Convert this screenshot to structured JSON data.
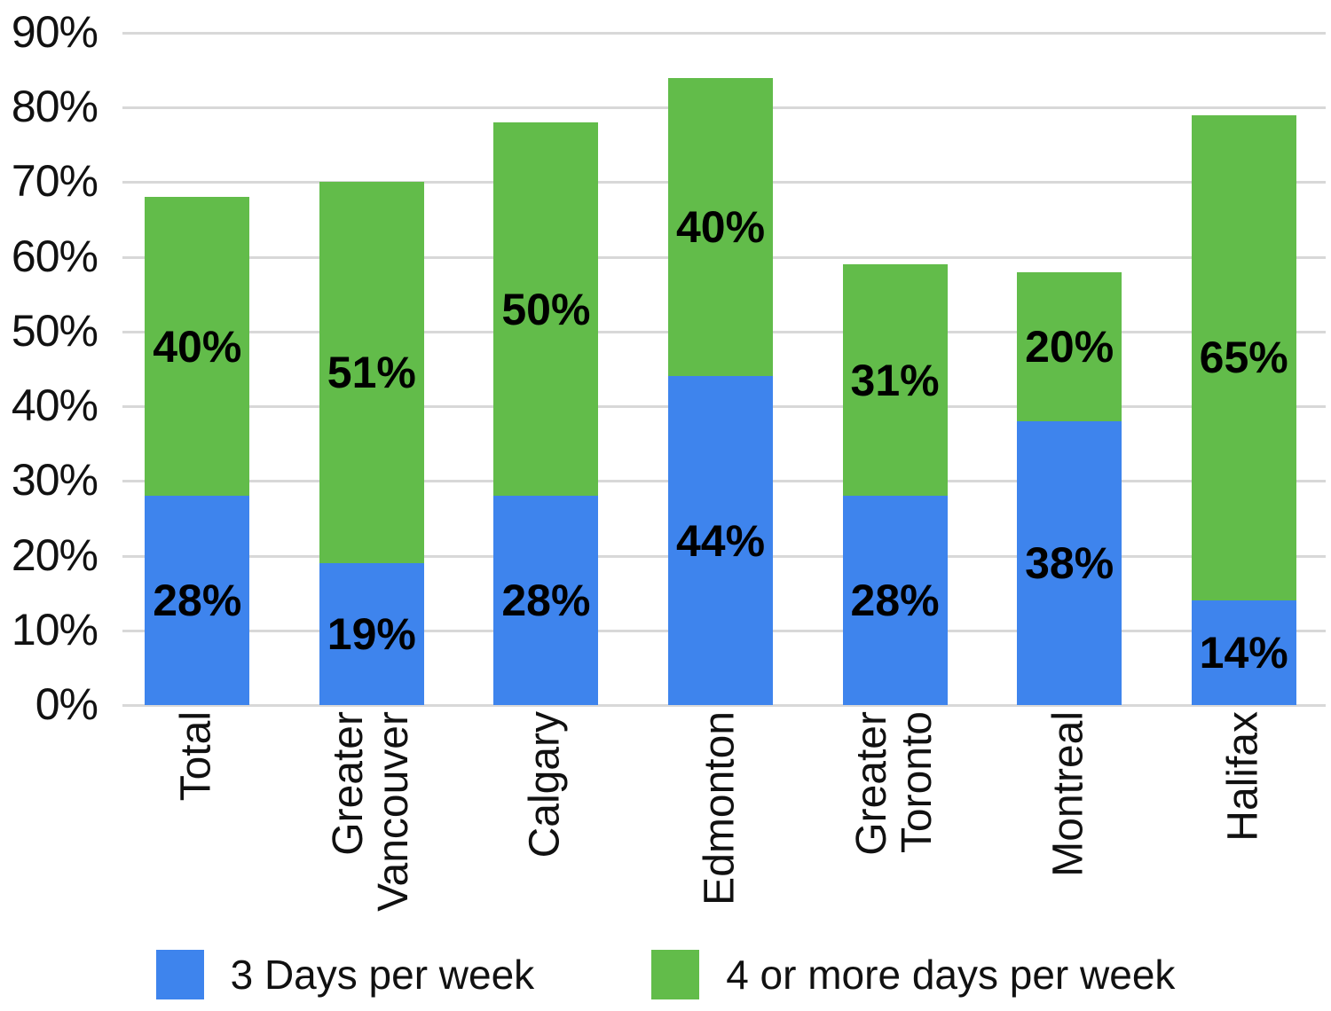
{
  "chart_data": {
    "type": "bar",
    "stacked": true,
    "title": "",
    "categories": [
      "Total",
      "Greater\nVancouver",
      "Calgary",
      "Edmonton",
      "Greater\nToronto",
      "Montreal",
      "Halifax"
    ],
    "series": [
      {
        "name": "3 Days per week",
        "color": "#3e84ed",
        "values": [
          28,
          19,
          28,
          44,
          28,
          38,
          14
        ]
      },
      {
        "name": "4 or more days per week",
        "color": "#62bc4a",
        "values": [
          40,
          51,
          50,
          40,
          31,
          20,
          65
        ]
      }
    ],
    "ylim": [
      0,
      90
    ],
    "ytick_step": 10,
    "value_suffix": "%",
    "grid": true,
    "gridline_color": "#d8d8d8",
    "axis_text_color": "#111111",
    "data_label_color": "#000000",
    "data_labels": "inside-center",
    "legend_position": "bottom",
    "background": "#ffffff"
  }
}
